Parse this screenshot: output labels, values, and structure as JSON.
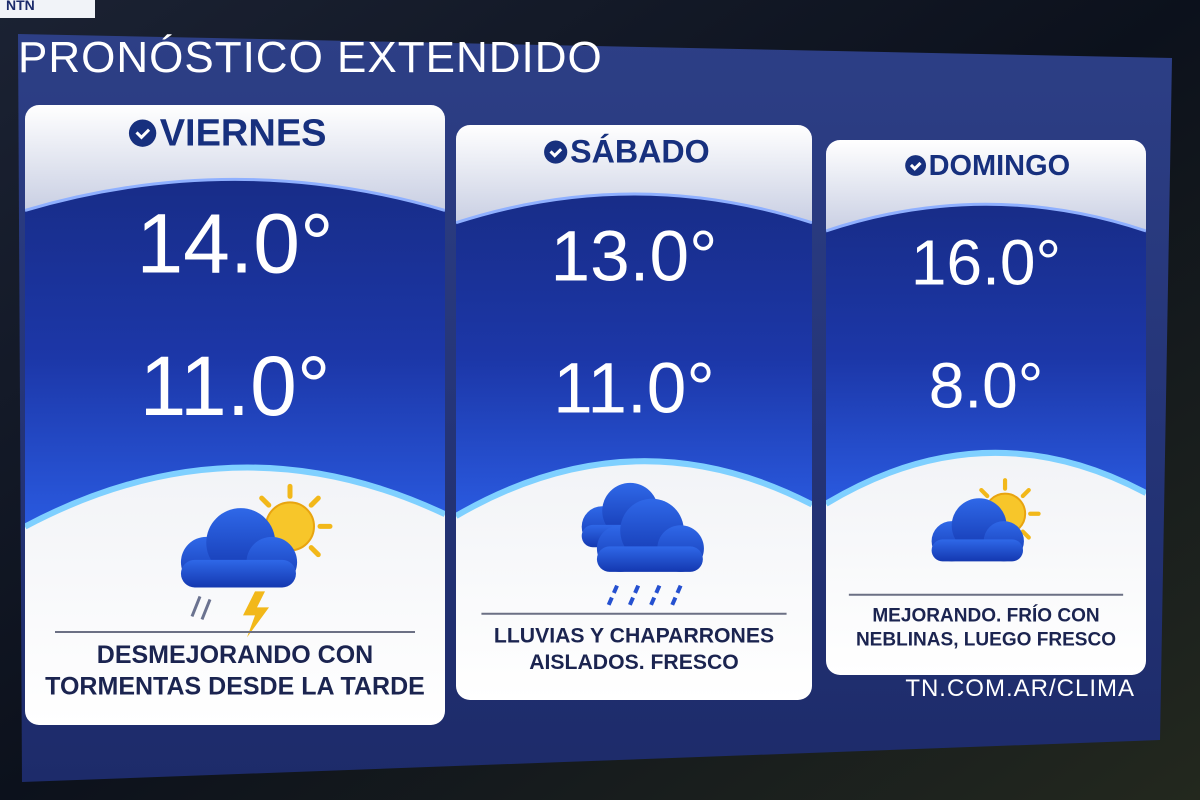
{
  "logo": "NTN",
  "title": "PRONÓSTICO EXTENDIDO",
  "days": [
    {
      "name": "VIERNES",
      "high": "14.0°",
      "low": "11.0°",
      "description": [
        "DESMEJORANDO CON",
        "TORMENTAS DESDE LA TARDE"
      ]
    },
    {
      "name": "SÁBADO",
      "high": "13.0°",
      "low": "11.0°",
      "description": [
        "LLUVIAS Y CHAPARRONES",
        "AISLADOS. FRESCO"
      ]
    },
    {
      "name": "DOMINGO",
      "high": "16.0°",
      "low": "8.0°",
      "description": [
        "MEJORANDO. FRÍO CON",
        "NEBLINAS, LUEGO FRESCO"
      ]
    }
  ],
  "footer": "TN.COM.AR/CLIMA"
}
